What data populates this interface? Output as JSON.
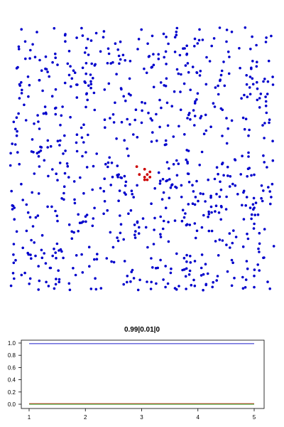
{
  "colors": {
    "blue_points": "#0000cc",
    "red_points": "#cc0000",
    "line_blue": "#1f1fcc",
    "line_red": "#e03030",
    "line_green": "#22aa22"
  },
  "chart_data": [
    {
      "type": "scatter",
      "title": "",
      "xlim": [
        0,
        1
      ],
      "ylim": [
        0,
        1
      ],
      "grid": false,
      "series": [
        {
          "color": "#0000cc",
          "points": "generated"
        },
        {
          "color": "#cc0000",
          "points": [
            [
              0.48,
              0.47
            ],
            [
              0.51,
              0.46
            ],
            [
              0.52,
              0.44
            ],
            [
              0.51,
              0.43
            ],
            [
              0.53,
              0.43
            ],
            [
              0.52,
              0.42
            ],
            [
              0.51,
              0.42
            ],
            [
              0.53,
              0.45
            ],
            [
              0.49,
              0.44
            ]
          ]
        }
      ]
    },
    {
      "type": "line",
      "title": "0.99|0.01|0",
      "x": [
        1,
        2,
        3,
        4,
        5
      ],
      "xticks": [
        "1",
        "2",
        "3",
        "4",
        "5"
      ],
      "yticks": [
        "0.0",
        "0.2",
        "0.4",
        "0.6",
        "0.8",
        "1.0"
      ],
      "xlim": [
        1,
        5
      ],
      "ylim": [
        0,
        1
      ],
      "series": [
        {
          "color": "#1f1fcc",
          "values": [
            0.99,
            0.99,
            0.99,
            0.99,
            0.99
          ]
        },
        {
          "color": "#e03030",
          "values": [
            0.01,
            0.01,
            0.01,
            0.01,
            0.01
          ]
        },
        {
          "color": "#22aa22",
          "values": [
            0.0,
            0.0,
            0.0,
            0.0,
            0.0
          ]
        }
      ]
    }
  ]
}
